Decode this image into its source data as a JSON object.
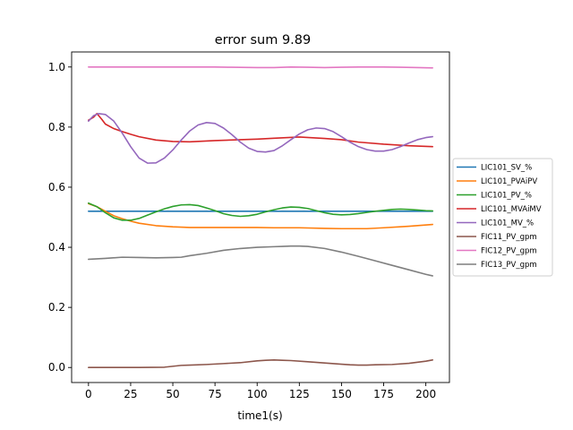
{
  "chart_data": {
    "type": "line",
    "title": "error sum 9.89",
    "xlabel": "time1(s)",
    "ylabel": "",
    "xlim": [
      -10,
      214
    ],
    "ylim": [
      -0.05,
      1.05
    ],
    "xticks": [
      0,
      25,
      50,
      75,
      100,
      125,
      150,
      175,
      200
    ],
    "yticks": [
      0.0,
      0.2,
      0.4,
      0.6,
      0.8,
      1.0
    ],
    "ytick_labels": [
      "0.0",
      "0.2",
      "0.4",
      "0.6",
      "0.8",
      "1.0"
    ],
    "grid": false,
    "legend_position": "center-right-outside",
    "series": [
      {
        "name": "LIC101_SV_%",
        "color": "#1f77b4",
        "x": [
          0,
          50,
          100,
          150,
          204
        ],
        "y": [
          0.52,
          0.52,
          0.52,
          0.52,
          0.52
        ]
      },
      {
        "name": "LIC101_PVAiPV",
        "color": "#ff7f0e",
        "x": [
          0,
          5,
          10,
          15,
          20,
          25,
          30,
          40,
          50,
          60,
          75,
          90,
          100,
          110,
          125,
          140,
          150,
          165,
          175,
          190,
          204
        ],
        "y": [
          0.545,
          0.535,
          0.52,
          0.505,
          0.495,
          0.487,
          0.48,
          0.472,
          0.468,
          0.466,
          0.466,
          0.466,
          0.466,
          0.465,
          0.465,
          0.463,
          0.462,
          0.462,
          0.465,
          0.47,
          0.476
        ]
      },
      {
        "name": "LIC101_PV_%",
        "color": "#2ca02c",
        "x": [
          0,
          5,
          10,
          15,
          20,
          25,
          30,
          35,
          40,
          45,
          50,
          55,
          60,
          65,
          70,
          75,
          80,
          85,
          90,
          95,
          100,
          105,
          110,
          115,
          120,
          125,
          130,
          135,
          140,
          145,
          150,
          155,
          160,
          165,
          170,
          175,
          180,
          185,
          190,
          195,
          200,
          204
        ],
        "y": [
          0.547,
          0.535,
          0.515,
          0.498,
          0.49,
          0.49,
          0.496,
          0.507,
          0.518,
          0.528,
          0.536,
          0.541,
          0.542,
          0.539,
          0.531,
          0.522,
          0.512,
          0.506,
          0.503,
          0.505,
          0.51,
          0.518,
          0.525,
          0.531,
          0.534,
          0.533,
          0.529,
          0.522,
          0.515,
          0.51,
          0.508,
          0.509,
          0.512,
          0.516,
          0.52,
          0.523,
          0.526,
          0.527,
          0.526,
          0.524,
          0.522,
          0.521
        ]
      },
      {
        "name": "LIC101_MVAiMV",
        "color": "#d62728",
        "x": [
          0,
          3,
          5,
          8,
          10,
          15,
          20,
          25,
          30,
          40,
          50,
          60,
          75,
          90,
          100,
          110,
          125,
          140,
          150,
          160,
          175,
          190,
          204
        ],
        "y": [
          0.823,
          0.833,
          0.845,
          0.825,
          0.81,
          0.795,
          0.785,
          0.776,
          0.768,
          0.757,
          0.752,
          0.751,
          0.755,
          0.758,
          0.76,
          0.763,
          0.767,
          0.762,
          0.758,
          0.75,
          0.743,
          0.738,
          0.735
        ]
      },
      {
        "name": "LIC101_MV_%",
        "color": "#9467bd",
        "x": [
          0,
          3,
          6,
          10,
          15,
          20,
          25,
          30,
          35,
          40,
          45,
          50,
          55,
          60,
          65,
          70,
          75,
          80,
          85,
          90,
          95,
          100,
          105,
          110,
          115,
          120,
          125,
          130,
          135,
          140,
          145,
          150,
          155,
          160,
          165,
          170,
          175,
          180,
          185,
          190,
          195,
          200,
          204
        ],
        "y": [
          0.82,
          0.838,
          0.845,
          0.842,
          0.82,
          0.78,
          0.735,
          0.697,
          0.68,
          0.681,
          0.697,
          0.724,
          0.757,
          0.787,
          0.807,
          0.815,
          0.812,
          0.797,
          0.775,
          0.75,
          0.73,
          0.719,
          0.717,
          0.722,
          0.738,
          0.758,
          0.777,
          0.791,
          0.797,
          0.795,
          0.785,
          0.768,
          0.75,
          0.735,
          0.725,
          0.72,
          0.72,
          0.725,
          0.735,
          0.747,
          0.758,
          0.765,
          0.768
        ]
      },
      {
        "name": "FIC11_PV_gpm",
        "color": "#8c564b",
        "x": [
          0,
          10,
          20,
          30,
          45,
          50,
          55,
          60,
          70,
          80,
          90,
          100,
          105,
          110,
          115,
          120,
          130,
          140,
          150,
          155,
          160,
          165,
          170,
          180,
          190,
          200,
          204
        ],
        "y": [
          0.0,
          0.0,
          0.0,
          0.0,
          0.001,
          0.004,
          0.007,
          0.008,
          0.01,
          0.013,
          0.016,
          0.022,
          0.024,
          0.025,
          0.024,
          0.023,
          0.019,
          0.015,
          0.011,
          0.009,
          0.008,
          0.008,
          0.009,
          0.01,
          0.014,
          0.021,
          0.025
        ]
      },
      {
        "name": "FIC12_PV_gpm",
        "color": "#e377c2",
        "x": [
          0,
          25,
          50,
          75,
          85,
          100,
          110,
          120,
          130,
          140,
          150,
          160,
          175,
          185,
          195,
          204
        ],
        "y": [
          1.0,
          1.0,
          1.0,
          1.0,
          0.999,
          0.998,
          0.998,
          1.0,
          0.999,
          0.998,
          0.999,
          1.0,
          1.0,
          0.999,
          0.998,
          0.997
        ]
      },
      {
        "name": "FIC13_PV_gpm",
        "color": "#7f7f7f",
        "x": [
          0,
          10,
          20,
          30,
          40,
          50,
          55,
          60,
          70,
          80,
          90,
          100,
          110,
          115,
          120,
          125,
          130,
          140,
          150,
          160,
          170,
          180,
          190,
          200,
          204
        ],
        "y": [
          0.36,
          0.363,
          0.367,
          0.366,
          0.365,
          0.366,
          0.367,
          0.372,
          0.38,
          0.39,
          0.396,
          0.4,
          0.402,
          0.403,
          0.404,
          0.404,
          0.403,
          0.396,
          0.384,
          0.37,
          0.355,
          0.34,
          0.325,
          0.31,
          0.305
        ]
      }
    ]
  }
}
